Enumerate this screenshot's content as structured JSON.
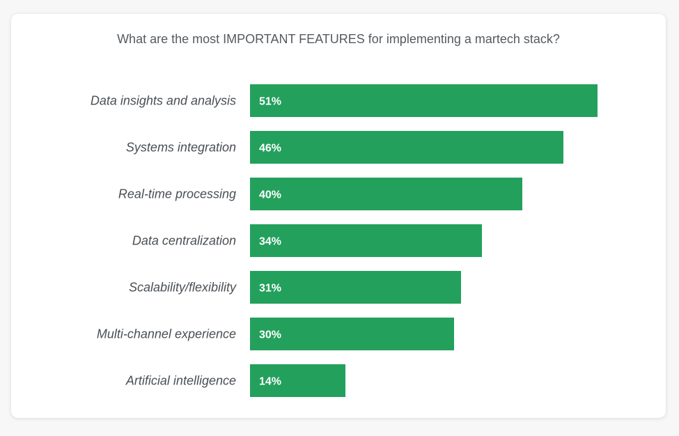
{
  "chart_data": {
    "type": "bar",
    "orientation": "horizontal",
    "title": "What are the most IMPORTANT FEATURES for implementing a martech stack?",
    "categories": [
      "Data insights and analysis",
      "Systems integration",
      "Real-time processing",
      "Data centralization",
      "Scalability/flexibility",
      "Multi-channel experience",
      "Artificial intelligence"
    ],
    "values": [
      51,
      46,
      40,
      34,
      31,
      30,
      14
    ],
    "value_labels": [
      "51%",
      "46%",
      "40%",
      "34%",
      "31%",
      "30%",
      "14%"
    ],
    "unit": "%",
    "grid": false,
    "legend": "none",
    "colors": {
      "bar": "#23a05c"
    }
  }
}
